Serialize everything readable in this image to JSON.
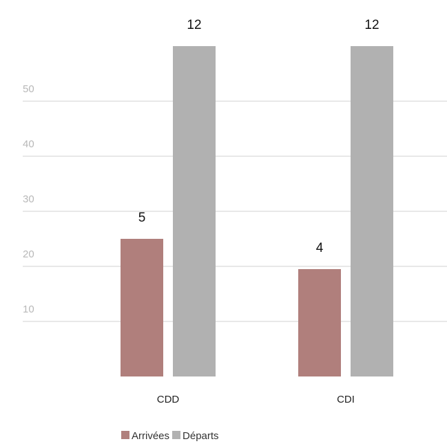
{
  "chart_data": {
    "type": "bar",
    "categories": [
      "CDD",
      "CDI"
    ],
    "series": [
      {
        "name": "Arrivées",
        "color": "#b07f7c",
        "values": [
          25,
          19.5
        ],
        "labels": [
          "5",
          "4"
        ]
      },
      {
        "name": "Départs",
        "color": "#b1b1b1",
        "values": [
          60,
          60
        ],
        "labels": [
          "12",
          "12"
        ]
      }
    ],
    "yticks": [
      10,
      20,
      30,
      40,
      50
    ],
    "ylim": [
      0,
      60
    ],
    "grid": true,
    "legend_position": "bottom-center",
    "title": "",
    "xlabel": "",
    "ylabel": ""
  }
}
